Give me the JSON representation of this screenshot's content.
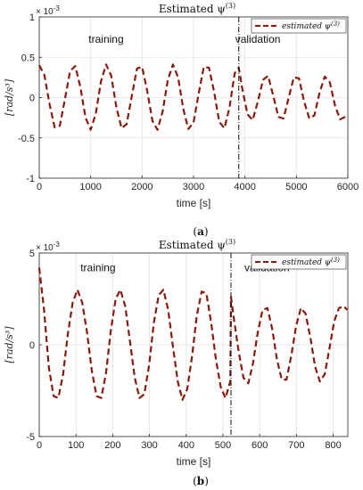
{
  "chart_data": [
    {
      "type": "line",
      "panel_label": "a",
      "title": "Estimated ψ",
      "title_sup": "(3)",
      "xlabel": "time [s]",
      "ylabel": "[rad/s³]",
      "y_exponent": "× 10",
      "y_exponent_power": "-3",
      "xlim": [
        0,
        6000
      ],
      "ylim": [
        -1,
        1
      ],
      "x_ticks": [
        "0",
        "1000",
        "2000",
        "3000",
        "4000",
        "5000",
        "6000"
      ],
      "y_ticks": [
        "-1",
        "-0.5",
        "0",
        "0.5",
        "1"
      ],
      "grid": true,
      "legend_position": "top-right",
      "split_x": 3880,
      "annotations": {
        "training": "training",
        "validation": "validation"
      },
      "series": [
        {
          "name": "estimated ψ",
          "name_sup": "(3)",
          "color": "#8b1a0e",
          "style": "dashed",
          "x": [
            0,
            100,
            200,
            300,
            400,
            500,
            600,
            700,
            800,
            900,
            1000,
            1100,
            1200,
            1300,
            1400,
            1500,
            1600,
            1700,
            1800,
            1900,
            2000,
            2100,
            2200,
            2300,
            2400,
            2500,
            2600,
            2700,
            2800,
            2900,
            3000,
            3100,
            3200,
            3300,
            3400,
            3500,
            3600,
            3700,
            3800,
            3880,
            3950,
            4050,
            4150,
            4250,
            4350,
            4450,
            4550,
            4650,
            4750,
            4850,
            4950,
            5050,
            5150,
            5250,
            5350,
            5450,
            5550,
            5650,
            5750,
            5850,
            5950
          ],
          "y": [
            0.4,
            0.28,
            -0.08,
            -0.37,
            -0.35,
            -0.02,
            0.33,
            0.39,
            0.13,
            -0.25,
            -0.4,
            -0.2,
            0.2,
            0.41,
            0.27,
            -0.12,
            -0.38,
            -0.33,
            0.02,
            0.36,
            0.38,
            0.08,
            -0.29,
            -0.4,
            -0.17,
            0.22,
            0.41,
            0.25,
            -0.14,
            -0.39,
            -0.31,
            0.05,
            0.38,
            0.37,
            0.07,
            -0.3,
            -0.38,
            -0.12,
            0.3,
            0.37,
            0.1,
            -0.21,
            -0.28,
            -0.05,
            0.22,
            0.27,
            0.02,
            -0.24,
            -0.26,
            0.0,
            0.25,
            0.24,
            -0.05,
            -0.26,
            -0.22,
            0.06,
            0.26,
            0.19,
            -0.1,
            -0.27,
            -0.24
          ]
        }
      ]
    },
    {
      "type": "line",
      "panel_label": "b",
      "title": "Estimated ψ",
      "title_sup": "(3)",
      "xlabel": "time [s]",
      "ylabel": "[rad/s³]",
      "y_exponent": "× 10",
      "y_exponent_power": "-3",
      "xlim": [
        0,
        840
      ],
      "ylim": [
        -5,
        5
      ],
      "x_ticks": [
        "0",
        "100",
        "200",
        "300",
        "400",
        "500",
        "600",
        "700",
        "800"
      ],
      "y_ticks": [
        "-5",
        "0",
        "5"
      ],
      "grid": true,
      "legend_position": "top-right",
      "split_x": 522,
      "annotations": {
        "training": "training",
        "validation": "validation"
      },
      "series": [
        {
          "name": "estimated ψ",
          "name_sup": "(3)",
          "color": "#8b1a0e",
          "style": "dashed",
          "x": [
            0,
            13,
            26,
            39,
            52,
            65,
            78,
            91,
            104,
            117,
            130,
            143,
            156,
            169,
            182,
            195,
            208,
            221,
            234,
            247,
            260,
            273,
            286,
            299,
            312,
            325,
            338,
            351,
            364,
            377,
            390,
            403,
            416,
            429,
            442,
            455,
            468,
            481,
            494,
            507,
            520,
            522,
            530,
            543,
            556,
            569,
            582,
            595,
            608,
            621,
            634,
            647,
            660,
            673,
            686,
            699,
            712,
            725,
            738,
            751,
            764,
            777,
            790,
            803,
            816,
            829,
            838
          ],
          "y": [
            4.2,
            1.9,
            -1.2,
            -2.8,
            -2.9,
            -1.6,
            0.6,
            2.3,
            3.0,
            2.3,
            0.7,
            -1.4,
            -2.8,
            -2.9,
            -1.5,
            0.8,
            2.5,
            3.0,
            2.1,
            0.2,
            -1.8,
            -2.9,
            -2.7,
            -1.1,
            1.2,
            2.7,
            3.0,
            1.9,
            -0.1,
            -2.0,
            -3.0,
            -2.4,
            -0.6,
            1.6,
            2.9,
            2.8,
            1.2,
            -0.8,
            -2.3,
            -2.9,
            -2.0,
            2.6,
            1.4,
            -0.4,
            -1.8,
            -2.1,
            -1.0,
            0.7,
            1.9,
            2.0,
            0.9,
            -0.8,
            -1.9,
            -1.9,
            -0.6,
            1.0,
            2.0,
            1.7,
            0.4,
            -1.2,
            -2.0,
            -1.6,
            -0.2,
            1.3,
            2.0,
            2.1,
            1.9
          ]
        }
      ]
    }
  ]
}
